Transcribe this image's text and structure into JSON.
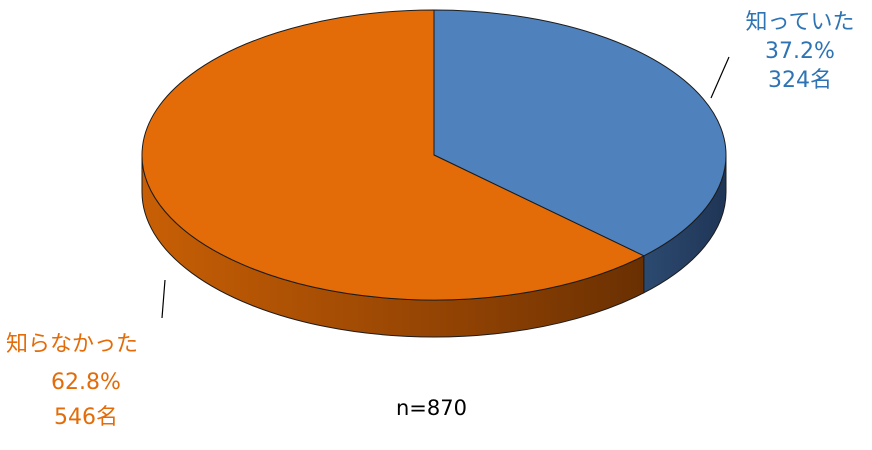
{
  "chart_data": {
    "type": "pie",
    "series": [
      {
        "name": "知っていた",
        "percent_label": "37.2%",
        "count_label": "324名",
        "value": 324,
        "color": "#4f81bd"
      },
      {
        "name": "知らなかった",
        "percent_label": "62.8%",
        "count_label": "546名",
        "value": 546,
        "color": "#e36c09"
      }
    ],
    "annotation": "n=870",
    "style": "3d"
  }
}
